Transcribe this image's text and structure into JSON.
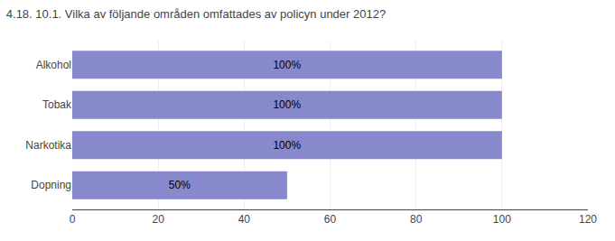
{
  "chart_data": {
    "type": "bar",
    "orientation": "horizontal",
    "title": "4.18. 10.1. Vilka av följande områden omfattades av policyn under 2012?",
    "categories": [
      "Dopning",
      "Narkotika",
      "Tobak",
      "Alkohol"
    ],
    "values": [
      50,
      100,
      100,
      100
    ],
    "value_labels": [
      "50%",
      "100%",
      "100%",
      "100%"
    ],
    "data_labels": true,
    "color": "#8888cc",
    "xlim": [
      0,
      120
    ],
    "xticks": [
      0,
      20,
      40,
      60,
      80,
      100,
      120
    ],
    "grid": true
  }
}
